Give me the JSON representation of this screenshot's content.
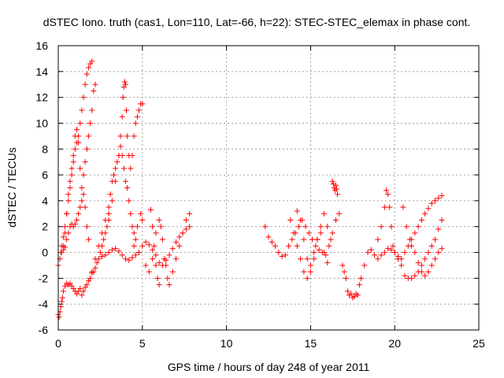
{
  "chart_data": {
    "type": "scatter",
    "title": "dSTEC Iono. truth (cas1, Lon=110, Lat=-66, h=22): STEC-STEC_elemax in phase cont.",
    "xlabel": "GPS time / hours of day 248 of year 2011",
    "ylabel": "dSTEC  / TECUs",
    "xlim": [
      0,
      25
    ],
    "ylim": [
      -6,
      16
    ],
    "xticks": [
      0,
      5,
      10,
      15,
      20,
      25
    ],
    "yticks": [
      -6,
      -4,
      -2,
      0,
      2,
      4,
      6,
      8,
      10,
      12,
      14,
      16
    ],
    "grid": true,
    "marker": "+",
    "color": "#ff0000",
    "series": [
      {
        "x": [
          0.0,
          0.1,
          0.15,
          0.2,
          0.3,
          0.4,
          0.5,
          0.6,
          0.7,
          0.8,
          0.9,
          1.0,
          1.1,
          1.2,
          1.3,
          1.4,
          1.5,
          1.6,
          1.7,
          1.8,
          1.9,
          2.0
        ],
        "y": [
          -1.0,
          -0.5,
          0.0,
          0.5,
          1.2,
          2.0,
          3.0,
          4.0,
          5.0,
          6.0,
          7.0,
          8.0,
          8.5,
          9.0,
          10.0,
          11.0,
          12.0,
          13.0,
          13.8,
          14.3,
          14.6,
          14.8
        ]
      },
      {
        "x": [
          0.2,
          0.3,
          0.4,
          0.5,
          0.6,
          0.7,
          0.8,
          0.9,
          1.0,
          1.1,
          1.2,
          1.3,
          1.4,
          1.5,
          1.6,
          1.7,
          1.8,
          1.9,
          2.0,
          2.1,
          2.2
        ],
        "y": [
          0.0,
          0.5,
          1.5,
          3.0,
          4.5,
          5.5,
          6.5,
          7.5,
          9.0,
          9.5,
          8.5,
          6.5,
          5.0,
          6.0,
          7.0,
          8.0,
          9.0,
          10.0,
          11.0,
          12.5,
          13.0
        ]
      },
      {
        "x": [
          0.0,
          0.05,
          0.1,
          0.15,
          0.2,
          0.25,
          0.3,
          0.4,
          0.5,
          0.6,
          0.7,
          0.8,
          0.9,
          1.0,
          1.1,
          1.2,
          1.3,
          1.4,
          1.5,
          1.6,
          1.7,
          1.8,
          1.9,
          2.0,
          2.1,
          2.2,
          2.3,
          2.4,
          2.5,
          2.6,
          2.7,
          2.8,
          2.9,
          3.0
        ],
        "y": [
          -4.8,
          -5.0,
          -4.6,
          -4.2,
          -3.8,
          -3.5,
          -3.0,
          -2.6,
          -2.4,
          -2.5,
          -2.4,
          -2.6,
          -2.8,
          -3.0,
          -3.2,
          -3.0,
          -2.8,
          -3.3,
          -3.0,
          -2.7,
          -2.5,
          -2.2,
          -2.0,
          -1.6,
          -1.5,
          -1.2,
          -0.8,
          -0.5,
          0.0,
          0.5,
          1.0,
          1.5,
          2.0,
          2.5
        ]
      },
      {
        "x": [
          0.3,
          0.4,
          0.5,
          0.6,
          0.7,
          0.8,
          0.9,
          1.0,
          1.1,
          1.2,
          1.3,
          1.4,
          1.5,
          1.6,
          1.7,
          1.8
        ],
        "y": [
          0.2,
          0.4,
          1.0,
          1.5,
          2.0,
          2.2,
          2.0,
          2.2,
          2.5,
          3.0,
          3.5,
          4.0,
          4.5,
          3.5,
          2.0,
          1.0
        ]
      },
      {
        "x": [
          2.0,
          2.2,
          2.4,
          2.6,
          2.8,
          3.0,
          3.1,
          3.2,
          3.3,
          3.4,
          3.5,
          3.6,
          3.7,
          3.8,
          3.9,
          4.0,
          4.1,
          4.2,
          4.3,
          4.4,
          4.5,
          4.6
        ],
        "y": [
          -1.5,
          -0.5,
          0.5,
          1.5,
          2.5,
          3.5,
          4.5,
          5.5,
          6.0,
          6.5,
          7.0,
          7.5,
          8.2,
          7.5,
          6.5,
          5.5,
          5.0,
          4.0,
          3.0,
          2.0,
          1.5,
          1.0
        ]
      },
      {
        "x": [
          3.0,
          3.2,
          3.4,
          3.6,
          3.7,
          3.8,
          3.85,
          3.9,
          3.95,
          4.0,
          4.05,
          4.1,
          4.2,
          4.3,
          4.4,
          4.5,
          4.6,
          4.7,
          4.8,
          4.9,
          5.0
        ],
        "y": [
          3.0,
          4.0,
          5.5,
          7.5,
          9.0,
          10.5,
          12.0,
          12.8,
          13.2,
          13.0,
          11.0,
          9.0,
          7.5,
          6.5,
          7.5,
          9.0,
          10.0,
          10.5,
          11.0,
          11.5,
          11.5
        ]
      },
      {
        "x": [
          2.6,
          2.8,
          3.0,
          3.2,
          3.4,
          3.6,
          3.8,
          4.0,
          4.2,
          4.4,
          4.6,
          4.8,
          5.0,
          5.2,
          5.4,
          5.6,
          5.8,
          6.0,
          6.2,
          6.4,
          6.6,
          6.8,
          7.0,
          7.2,
          7.4,
          7.6,
          7.8
        ],
        "y": [
          -0.3,
          -0.2,
          0.0,
          0.2,
          0.3,
          0.1,
          -0.2,
          -0.5,
          -0.6,
          -0.4,
          -0.2,
          0.0,
          0.5,
          0.8,
          0.6,
          0.2,
          -0.2,
          -0.8,
          -1.0,
          -0.6,
          -0.2,
          0.3,
          0.8,
          1.2,
          1.5,
          1.8,
          2.0
        ]
      },
      {
        "x": [
          4.5,
          4.7,
          4.9,
          5.0,
          5.2,
          5.4,
          5.6,
          5.8,
          6.0,
          6.1,
          6.2,
          6.3,
          6.4,
          6.5,
          6.6,
          6.8,
          7.0,
          7.2,
          7.4,
          7.6,
          7.8
        ],
        "y": [
          0.5,
          2.0,
          3.0,
          2.5,
          -1.0,
          -1.5,
          -0.5,
          1.5,
          2.5,
          2.0,
          1.0,
          -0.5,
          -1.0,
          -2.0,
          -2.5,
          -1.5,
          -0.5,
          0.5,
          1.5,
          2.5,
          3.0
        ]
      },
      {
        "x": [
          5.5,
          5.6,
          5.7,
          5.8,
          5.9,
          6.0
        ],
        "y": [
          3.3,
          2.0,
          0.5,
          -1.0,
          -2.0,
          -2.5
        ]
      },
      {
        "x": [
          12.3,
          12.5,
          12.7,
          12.9,
          13.1,
          13.3,
          13.5,
          13.7,
          13.9,
          14.1,
          14.3,
          14.5,
          14.7,
          14.9,
          15.1,
          15.3,
          15.5,
          15.7,
          15.9,
          16.1,
          16.3,
          16.5,
          16.7
        ],
        "y": [
          2.0,
          1.2,
          0.8,
          0.5,
          0.0,
          -0.3,
          -0.2,
          0.5,
          1.0,
          1.5,
          2.0,
          2.5,
          2.0,
          1.5,
          1.0,
          0.5,
          0.2,
          0.0,
          -0.2,
          0.5,
          1.5,
          2.5,
          3.0
        ]
      },
      {
        "x": [
          13.8,
          14.0,
          14.2,
          14.4,
          14.6,
          14.8,
          15.0,
          15.2,
          15.4,
          15.6,
          15.8,
          16.0,
          16.2
        ],
        "y": [
          2.5,
          1.5,
          0.5,
          -0.5,
          -1.5,
          -2.0,
          -1.0,
          0.0,
          1.0,
          2.0,
          3.0,
          2.0,
          1.0
        ]
      },
      {
        "x": [
          14.2,
          14.4,
          14.6,
          14.8,
          15.0,
          15.2,
          15.4,
          15.6,
          15.8,
          16.0
        ],
        "y": [
          3.2,
          2.5,
          1.0,
          -0.5,
          -1.5,
          -0.5,
          1.0,
          1.5,
          0.0,
          -0.8
        ]
      },
      {
        "x": [
          16.3,
          16.35,
          16.4,
          16.45,
          16.5,
          16.55,
          16.6
        ],
        "y": [
          5.5,
          5.3,
          5.0,
          4.8,
          5.2,
          4.9,
          4.5
        ]
      },
      {
        "x": [
          16.9,
          17.0,
          17.1,
          17.2,
          17.3,
          17.4,
          17.5,
          17.6,
          17.7,
          17.8,
          17.9,
          18.0,
          18.2,
          18.4,
          18.6,
          18.8,
          19.0,
          19.2,
          19.4,
          19.6,
          19.8,
          20.0,
          20.2,
          20.4,
          20.6,
          20.8,
          21.0,
          21.2,
          21.4,
          21.6,
          21.8,
          22.0,
          22.2,
          22.4,
          22.6,
          22.8
        ],
        "y": [
          -1.0,
          -1.5,
          -2.0,
          -3.0,
          -3.3,
          -3.2,
          -3.5,
          -3.4,
          -3.2,
          -3.3,
          -2.5,
          -2.0,
          -1.0,
          0.0,
          0.2,
          -0.2,
          -0.5,
          -0.2,
          0.0,
          0.3,
          0.2,
          0.0,
          -0.3,
          -0.5,
          0.0,
          0.5,
          1.0,
          1.5,
          2.0,
          2.5,
          3.0,
          3.4,
          3.8,
          4.0,
          4.2,
          4.4
        ]
      },
      {
        "x": [
          19.0,
          19.2,
          19.4,
          19.5,
          19.6,
          19.7,
          19.8,
          19.9,
          20.0,
          20.2,
          20.4,
          20.6,
          20.8,
          21.0,
          21.2,
          21.4,
          21.6,
          21.8,
          22.0,
          22.2,
          22.4,
          22.6,
          22.8
        ],
        "y": [
          1.0,
          2.0,
          3.5,
          4.8,
          4.5,
          3.5,
          2.0,
          0.5,
          0.0,
          -0.5,
          -1.0,
          -1.8,
          -2.0,
          -2.0,
          -1.8,
          -1.5,
          -1.0,
          -0.5,
          0.0,
          0.5,
          1.0,
          1.8,
          2.5
        ]
      },
      {
        "x": [
          20.5,
          20.7,
          20.9,
          21.0,
          21.2,
          21.4,
          21.6,
          21.8,
          22.0,
          22.2,
          22.4,
          22.6,
          22.8
        ],
        "y": [
          3.5,
          2.0,
          1.0,
          0.5,
          0.0,
          -0.8,
          -1.5,
          -1.8,
          -1.5,
          -1.0,
          -0.5,
          0.0,
          0.3
        ]
      }
    ]
  }
}
